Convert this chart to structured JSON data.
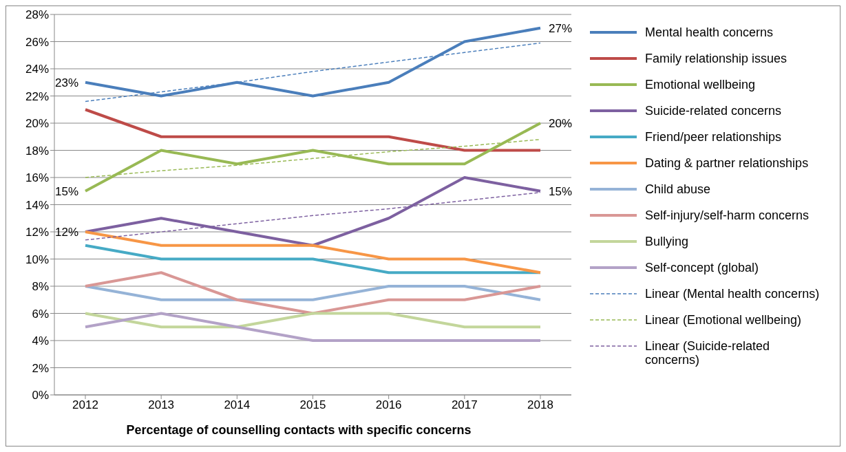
{
  "chart_data": {
    "type": "line",
    "xlabel": "Percentage of counselling contacts with specific concerns",
    "categories": [
      "2012",
      "2013",
      "2014",
      "2015",
      "2016",
      "2017",
      "2018"
    ],
    "ylim": [
      0,
      28
    ],
    "yticks": [
      {
        "value": 0,
        "label": "0%"
      },
      {
        "value": 2,
        "label": "2%"
      },
      {
        "value": 4,
        "label": "4%"
      },
      {
        "value": 6,
        "label": "6%"
      },
      {
        "value": 8,
        "label": "8%"
      },
      {
        "value": 10,
        "label": "10%"
      },
      {
        "value": 12,
        "label": "12%"
      },
      {
        "value": 14,
        "label": "14%"
      },
      {
        "value": 16,
        "label": "16%"
      },
      {
        "value": 18,
        "label": "18%"
      },
      {
        "value": 20,
        "label": "20%"
      },
      {
        "value": 22,
        "label": "22%"
      },
      {
        "value": 24,
        "label": "24%"
      },
      {
        "value": 26,
        "label": "26%"
      },
      {
        "value": 28,
        "label": "28%"
      }
    ],
    "grid": "y",
    "legend": "right",
    "marker": "none",
    "line_style": "solid",
    "series": [
      {
        "name": "Mental health concerns",
        "color": "#4a7ebb",
        "values": [
          23,
          22,
          23,
          22,
          23,
          26,
          27
        ],
        "value_labels": [
          "23%",
          null,
          null,
          null,
          null,
          null,
          "27%"
        ]
      },
      {
        "name": "Family relationship issues",
        "color": "#be4b48",
        "values": [
          21,
          19,
          19,
          19,
          19,
          18,
          18
        ]
      },
      {
        "name": "Emotional wellbeing",
        "color": "#98b954",
        "values": [
          15,
          18,
          17,
          18,
          17,
          17,
          20
        ],
        "value_labels": [
          "15%",
          null,
          null,
          null,
          null,
          null,
          "20%"
        ]
      },
      {
        "name": "Suicide-related concerns",
        "color": "#7d60a0",
        "values": [
          12,
          13,
          12,
          11,
          13,
          16,
          15
        ],
        "value_labels": [
          "12%",
          null,
          null,
          null,
          null,
          null,
          "15%"
        ]
      },
      {
        "name": "Friend/peer relationships",
        "color": "#46aac5",
        "values": [
          11,
          10,
          10,
          10,
          9,
          9,
          9
        ]
      },
      {
        "name": "Dating & partner relationships",
        "color": "#f79646",
        "values": [
          12,
          11,
          11,
          11,
          10,
          10,
          9
        ]
      },
      {
        "name": "Child abuse",
        "color": "#95b3d7",
        "values": [
          8,
          7,
          7,
          7,
          8,
          8,
          7
        ]
      },
      {
        "name": "Self-injury/self-harm concerns",
        "color": "#d99795",
        "values": [
          8,
          9,
          7,
          6,
          7,
          7,
          8
        ]
      },
      {
        "name": "Bullying",
        "color": "#c3d69b",
        "values": [
          6,
          5,
          5,
          6,
          6,
          5,
          5
        ]
      },
      {
        "name": "Self-concept (global)",
        "color": "#b3a2c7",
        "values": [
          5,
          6,
          5,
          4,
          4,
          4,
          4
        ]
      },
      {
        "name": "Linear (Mental health concerns)",
        "color": "#4a7ebb",
        "line_style": "dashed",
        "values": [
          21.6,
          22.3,
          23.0,
          23.8,
          24.5,
          25.2,
          25.9
        ]
      },
      {
        "name": "Linear (Emotional wellbeing)",
        "color": "#98b954",
        "line_style": "dashed",
        "values": [
          16.0,
          16.5,
          16.9,
          17.4,
          17.9,
          18.3,
          18.8
        ]
      },
      {
        "name": "Linear (Suicide-related concerns)",
        "color": "#7d60a0",
        "line_style": "dashed",
        "values": [
          11.4,
          12.0,
          12.6,
          13.2,
          13.7,
          14.3,
          14.9
        ]
      }
    ]
  }
}
